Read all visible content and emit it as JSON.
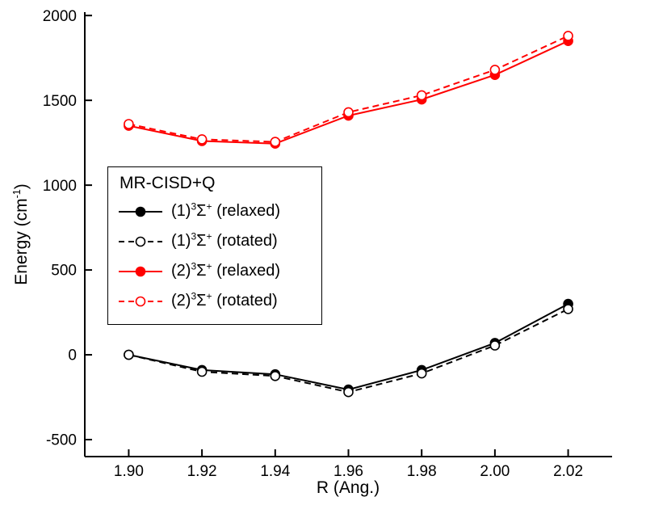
{
  "figure": {
    "background": "#ffffff",
    "axis_color": "#000000"
  },
  "chart_data": {
    "type": "line",
    "title": "",
    "xlabel": "R (Ang.)",
    "ylabel": {
      "main": "Energy (cm",
      "sup": "-1",
      "end": ")"
    },
    "xlim": [
      1.888,
      2.032
    ],
    "ylim": [
      -600,
      2020
    ],
    "xticks": [
      1.9,
      1.92,
      1.94,
      1.96,
      1.98,
      2.0,
      2.02
    ],
    "xtick_labels": [
      "1.90",
      "1.92",
      "1.94",
      "1.96",
      "1.98",
      "2.00",
      "2.02"
    ],
    "yticks": [
      -500,
      0,
      500,
      1000,
      1500,
      2000
    ],
    "ytick_labels": [
      "-500",
      "0",
      "500",
      "1000",
      "1500",
      "2000"
    ],
    "grid": false,
    "legend": {
      "title": "MR-CISD+Q",
      "position": "upper-left-inside"
    },
    "x": [
      1.9,
      1.92,
      1.94,
      1.96,
      1.98,
      2.0,
      2.02
    ],
    "series": [
      {
        "name": "(1)3Sigma+ (relaxed)",
        "label": {
          "pre": "(1)",
          "sup1": "3",
          "base": "Σ",
          "sup2": "+",
          "post": " (relaxed)"
        },
        "color": "#000000",
        "line": "solid",
        "marker": "filled-circle",
        "values": [
          0,
          -90,
          -115,
          -205,
          -90,
          70,
          300
        ]
      },
      {
        "name": "(1)3Sigma+ (rotated)",
        "label": {
          "pre": "(1)",
          "sup1": "3",
          "base": "Σ",
          "sup2": "+",
          "post": " (rotated)"
        },
        "color": "#000000",
        "line": "dashed",
        "marker": "open-circle",
        "values": [
          0,
          -100,
          -125,
          -220,
          -110,
          55,
          270
        ]
      },
      {
        "name": "(2)3Sigma+ (relaxed)",
        "label": {
          "pre": "(2)",
          "sup1": "3",
          "base": "Σ",
          "sup2": "+",
          "post": " (relaxed)"
        },
        "color": "#ff0000",
        "line": "solid",
        "marker": "filled-circle",
        "values": [
          1350,
          1260,
          1245,
          1410,
          1505,
          1650,
          1850
        ]
      },
      {
        "name": "(2)3Sigma+ (rotated)",
        "label": {
          "pre": "(2)",
          "sup1": "3",
          "base": "Σ",
          "sup2": "+",
          "post": " (rotated)"
        },
        "color": "#ff0000",
        "line": "dashed",
        "marker": "open-circle",
        "values": [
          1360,
          1270,
          1255,
          1430,
          1530,
          1680,
          1880
        ]
      }
    ]
  }
}
